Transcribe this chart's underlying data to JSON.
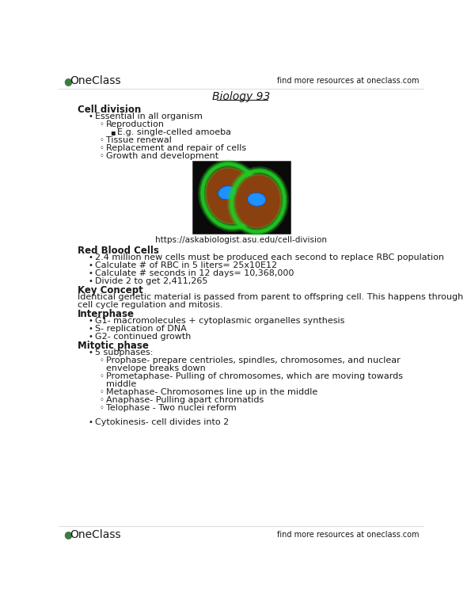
{
  "bg_color": "#ffffff",
  "text_color": "#1a1a1a",
  "green_color": "#3a7d44",
  "header_right": "find more resources at oneclass.com",
  "footer_right": "find more resources at oneclass.com",
  "title": "Biology 93",
  "sections": [
    {
      "type": "heading_bold",
      "text": "Cell division",
      "indent": 0
    },
    {
      "type": "bullet",
      "text": "Essential in all organism",
      "indent": 1
    },
    {
      "type": "sub_bullet_circle",
      "text": "Reproduction",
      "indent": 2
    },
    {
      "type": "sub_bullet_square",
      "text": "E.g. single-celled amoeba",
      "indent": 3
    },
    {
      "type": "sub_bullet_circle",
      "text": "Tissue renewal",
      "indent": 2
    },
    {
      "type": "sub_bullet_circle",
      "text": "Replacement and repair of cells",
      "indent": 2
    },
    {
      "type": "sub_bullet_circle",
      "text": "Growth and development",
      "indent": 2
    },
    {
      "type": "image_placeholder",
      "caption": "https://askabiologist.asu.edu/cell-division"
    },
    {
      "type": "heading_bold",
      "text": "Red Blood Cells",
      "indent": 0
    },
    {
      "type": "bullet",
      "text": "2.4 million new cells must be produced each second to replace RBC population",
      "indent": 1
    },
    {
      "type": "bullet",
      "text": "Calculate # of RBC in 5 liters= 25x10E12",
      "indent": 1
    },
    {
      "type": "bullet",
      "text": "Calculate # seconds in 12 days= 10,368,000",
      "indent": 1
    },
    {
      "type": "bullet",
      "text": "Divide 2 to get 2,411,265",
      "indent": 1
    },
    {
      "type": "heading_bold",
      "text": "Key Concept",
      "indent": 0
    },
    {
      "type": "plain",
      "text": "Identical genetic material is passed from parent to offspring cell. This happens through",
      "indent": 0
    },
    {
      "type": "plain",
      "text": "cell cycle regulation and mitosis.",
      "indent": 0
    },
    {
      "type": "heading_bold",
      "text": "Interphase",
      "indent": 0
    },
    {
      "type": "bullet",
      "text": "G1- macromolecules + cytoplasmic organelles synthesis",
      "indent": 1
    },
    {
      "type": "bullet",
      "text": "S- replication of DNA",
      "indent": 1
    },
    {
      "type": "bullet",
      "text": "G2- continued growth",
      "indent": 1
    },
    {
      "type": "heading_bold",
      "text": "Mitotic phase",
      "indent": 0
    },
    {
      "type": "bullet",
      "text": "5 subphases:",
      "indent": 1
    },
    {
      "type": "sub_bullet_circle_2line",
      "text1": "Prophase- prepare centrioles, spindles, chromosomes, and nuclear",
      "text2": "envelope breaks down",
      "indent": 2
    },
    {
      "type": "sub_bullet_circle_2line",
      "text1": "Prometaphase- Pulling of chromosomes, which are moving towards",
      "text2": "middle",
      "indent": 2
    },
    {
      "type": "sub_bullet_circle",
      "text": "Metaphase- Chromosomes line up in the middle",
      "indent": 2
    },
    {
      "type": "sub_bullet_circle",
      "text": "Anaphase- Pulling apart chromatids",
      "indent": 2
    },
    {
      "type": "sub_bullet_circle",
      "text": "Telophase - Two nuclei reform",
      "indent": 2
    },
    {
      "type": "spacer"
    },
    {
      "type": "bullet",
      "text": "Cytokinesis- cell divides into 2",
      "indent": 1
    }
  ]
}
